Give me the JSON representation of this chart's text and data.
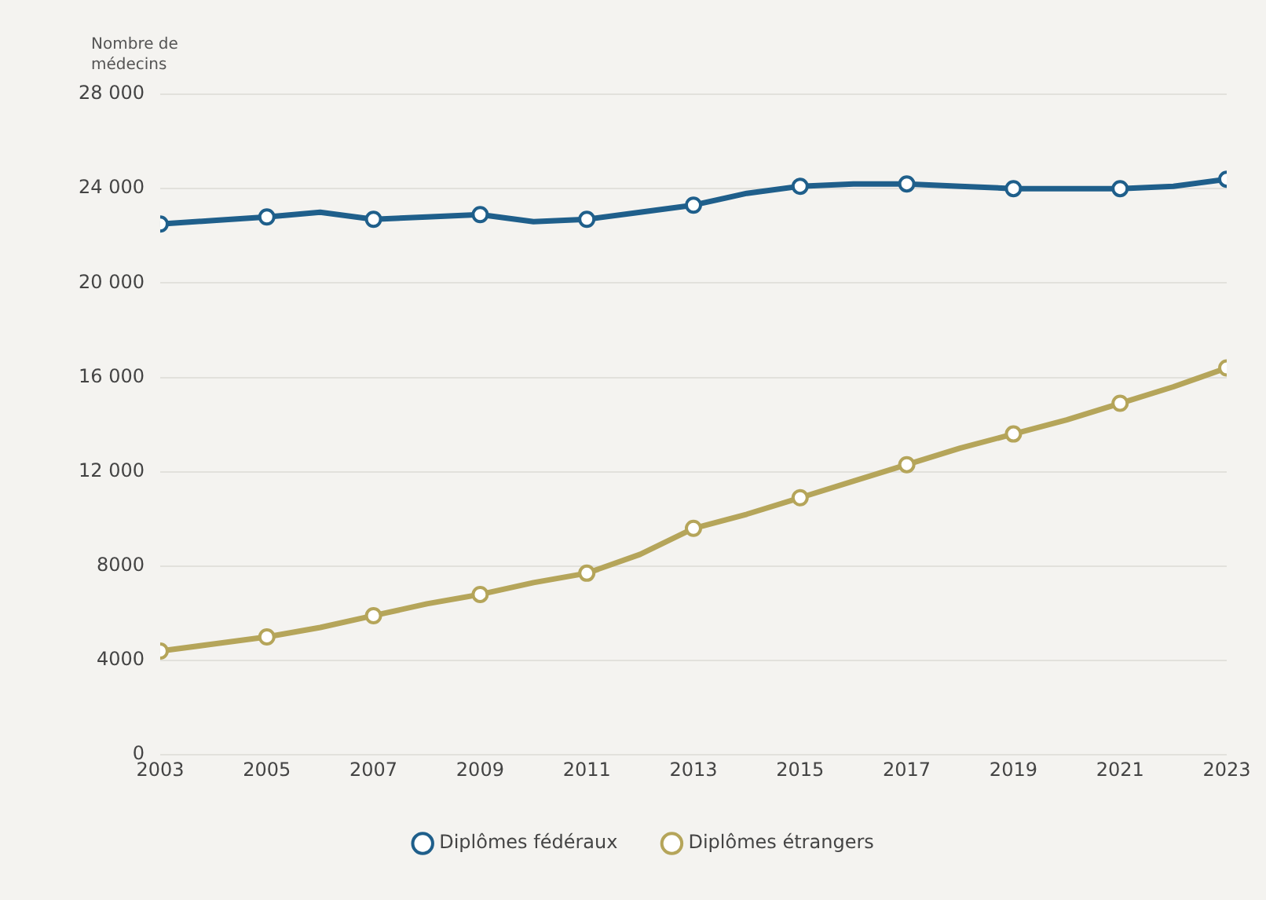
{
  "chart_data": {
    "type": "line",
    "ylabel": "Nombre de médecins",
    "x": [
      2003,
      2004,
      2005,
      2006,
      2007,
      2008,
      2009,
      2010,
      2011,
      2012,
      2013,
      2014,
      2015,
      2016,
      2017,
      2018,
      2019,
      2020,
      2021,
      2022,
      2023
    ],
    "series": [
      {
        "name": "Diplômes fédéraux",
        "color": "#1f5f8b",
        "values": [
          22500,
          22650,
          22800,
          23000,
          22700,
          22800,
          22900,
          22600,
          22700,
          23000,
          23300,
          23800,
          24100,
          24200,
          24200,
          24100,
          24000,
          24000,
          24000,
          24100,
          24400
        ]
      },
      {
        "name": "Diplômes étrangers",
        "color": "#b5a55a",
        "values": [
          4400,
          4700,
          5000,
          5400,
          5900,
          6400,
          6800,
          7300,
          7700,
          8500,
          9600,
          10200,
          10900,
          11600,
          12300,
          13000,
          13600,
          14200,
          14900,
          15600,
          16400
        ]
      }
    ],
    "xlim": [
      2003,
      2023
    ],
    "xticks": [
      2003,
      2005,
      2007,
      2009,
      2011,
      2013,
      2015,
      2017,
      2019,
      2021,
      2023
    ],
    "ylim": [
      0,
      28000
    ],
    "yticks": [
      0,
      4000,
      8000,
      {
        "value": 12000,
        "label": "12 000"
      },
      {
        "value": 16000,
        "label": "16 000"
      },
      {
        "value": 20000,
        "label": "20 000"
      },
      {
        "value": 24000,
        "label": "24 000"
      },
      {
        "value": 28000,
        "label": "28 000"
      }
    ],
    "grid": "y",
    "legend": "bottom",
    "marker": "circle",
    "line_style": "solid"
  }
}
